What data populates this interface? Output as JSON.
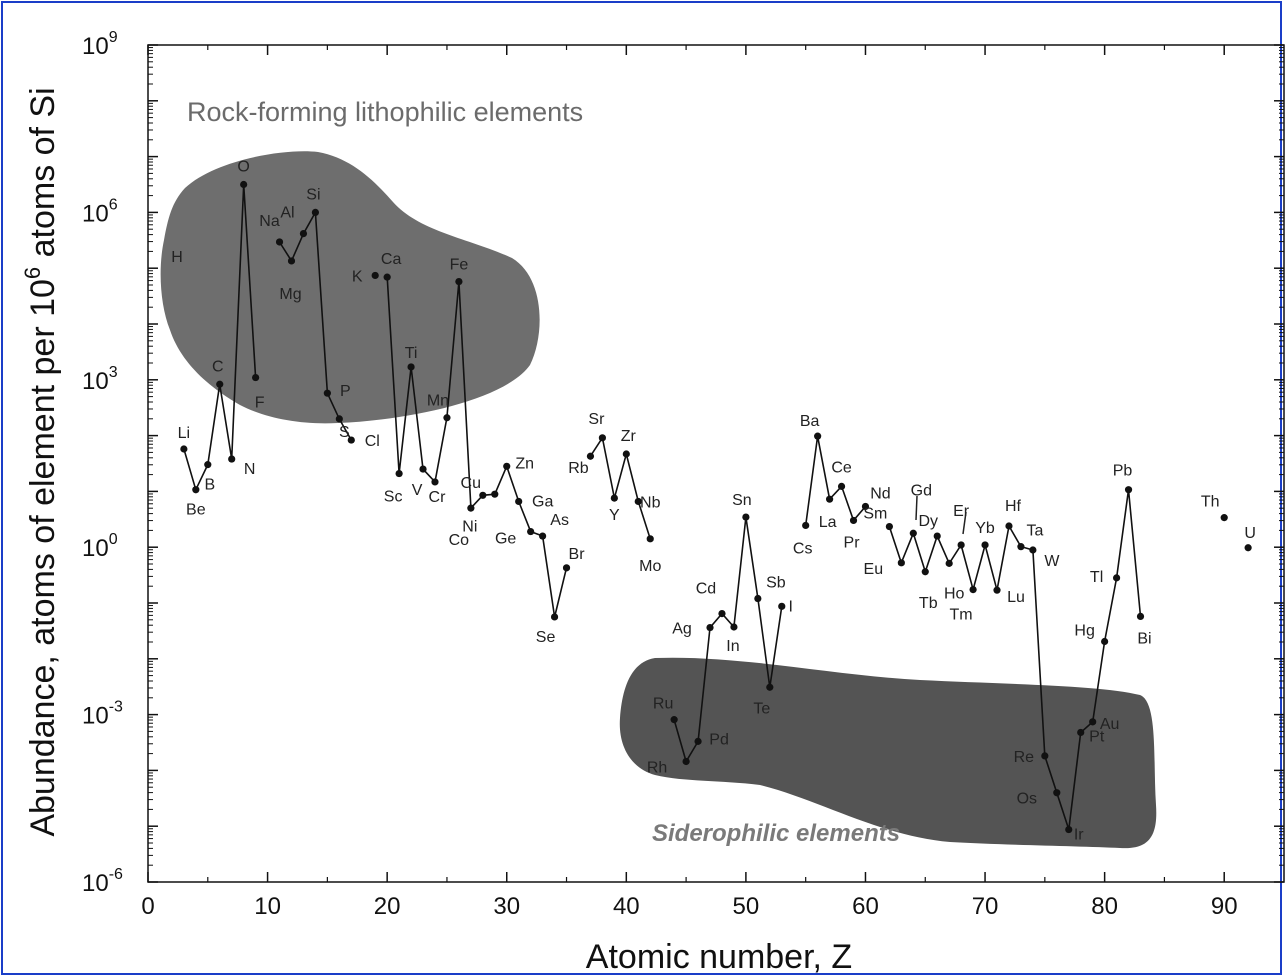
{
  "chart_data": {
    "type": "scatter",
    "xlabel": "Atomic number, Z",
    "ylabel": "Abundance, atoms of element per 10^6 atoms of Si",
    "ylabel_prefix": "Abundance, atoms of element per 10",
    "ylabel_sup": "6",
    "ylabel_suffix": " atoms of Si",
    "xlim": [
      0,
      95
    ],
    "ylim_log10": [
      -6,
      9
    ],
    "y_scale": "log",
    "x_ticks": [
      "0",
      "10",
      "20",
      "30",
      "40",
      "50",
      "60",
      "70",
      "80",
      "90"
    ],
    "y_ticks": [
      {
        "base": "10",
        "exp": "9"
      },
      {
        "base": "10",
        "exp": "6"
      },
      {
        "base": "10",
        "exp": "3"
      },
      {
        "base": "10",
        "exp": "0"
      },
      {
        "base": "10",
        "exp": "-3"
      },
      {
        "base": "10",
        "exp": "-6"
      }
    ],
    "regions": [
      {
        "name": "Rock-forming lithophilic elements",
        "color": "#6e6e6e"
      },
      {
        "name": "Siderophilic elements",
        "color": "#545454"
      }
    ],
    "line_color": "#111111",
    "point_color": "#111111",
    "points": [
      {
        "symbol": "H",
        "z": 1,
        "log10": 5.64
      },
      {
        "symbol": "Li",
        "z": 3,
        "log10": 1.76
      },
      {
        "symbol": "Be",
        "z": 4,
        "log10": 1.03
      },
      {
        "symbol": "B",
        "z": 5,
        "log10": 1.48
      },
      {
        "symbol": "C",
        "z": 6,
        "log10": 2.92
      },
      {
        "symbol": "N",
        "z": 7,
        "log10": 1.58
      },
      {
        "symbol": "O",
        "z": 8,
        "log10": 6.5
      },
      {
        "symbol": "F",
        "z": 9,
        "log10": 3.04
      },
      {
        "symbol": "Na",
        "z": 11,
        "log10": 5.47
      },
      {
        "symbol": "Mg",
        "z": 12,
        "log10": 5.13
      },
      {
        "symbol": "Al",
        "z": 13,
        "log10": 5.62
      },
      {
        "symbol": "Si",
        "z": 14,
        "log10": 6.0
      },
      {
        "symbol": "P",
        "z": 15,
        "log10": 2.76
      },
      {
        "symbol": "S",
        "z": 16,
        "log10": 2.3
      },
      {
        "symbol": "Cl",
        "z": 17,
        "log10": 1.92
      },
      {
        "symbol": "K",
        "z": 19,
        "log10": 4.87
      },
      {
        "symbol": "Ca",
        "z": 20,
        "log10": 4.84
      },
      {
        "symbol": "Sc",
        "z": 21,
        "log10": 1.32
      },
      {
        "symbol": "Ti",
        "z": 22,
        "log10": 3.23
      },
      {
        "symbol": "V",
        "z": 23,
        "log10": 1.4
      },
      {
        "symbol": "Cr",
        "z": 24,
        "log10": 1.17
      },
      {
        "symbol": "Mn",
        "z": 25,
        "log10": 2.32
      },
      {
        "symbol": "Fe",
        "z": 26,
        "log10": 4.76
      },
      {
        "symbol": "Co",
        "z": 27,
        "log10": 0.7
      },
      {
        "symbol": "Ni",
        "z": 28,
        "log10": 0.93
      },
      {
        "symbol": "Cu",
        "z": 29,
        "log10": 0.95
      },
      {
        "symbol": "Zn",
        "z": 30,
        "log10": 1.45
      },
      {
        "symbol": "Ga",
        "z": 31,
        "log10": 0.82
      },
      {
        "symbol": "Ge",
        "z": 32,
        "log10": 0.28
      },
      {
        "symbol": "As",
        "z": 33,
        "log10": 0.2
      },
      {
        "symbol": "Se",
        "z": 34,
        "log10": -1.25
      },
      {
        "symbol": "Br",
        "z": 35,
        "log10": -0.37
      },
      {
        "symbol": "Rb",
        "z": 37,
        "log10": 1.63
      },
      {
        "symbol": "Sr",
        "z": 38,
        "log10": 1.96
      },
      {
        "symbol": "Y",
        "z": 39,
        "log10": 0.88
      },
      {
        "symbol": "Zr",
        "z": 40,
        "log10": 1.67
      },
      {
        "symbol": "Nb",
        "z": 41,
        "log10": 0.82
      },
      {
        "symbol": "Mo",
        "z": 42,
        "log10": 0.15
      },
      {
        "symbol": "Ru",
        "z": 44,
        "log10": -3.09
      },
      {
        "symbol": "Rh",
        "z": 45,
        "log10": -3.84
      },
      {
        "symbol": "Pd",
        "z": 46,
        "log10": -3.48
      },
      {
        "symbol": "Ag",
        "z": 47,
        "log10": -1.44
      },
      {
        "symbol": "Cd",
        "z": 48,
        "log10": -1.19
      },
      {
        "symbol": "In",
        "z": 49,
        "log10": -1.43
      },
      {
        "symbol": "Sn",
        "z": 50,
        "log10": 0.54
      },
      {
        "symbol": "Sb",
        "z": 51,
        "log10": -0.92
      },
      {
        "symbol": "Te",
        "z": 52,
        "log10": -2.51
      },
      {
        "symbol": "I",
        "z": 53,
        "log10": -1.06
      },
      {
        "symbol": "Cs",
        "z": 55,
        "log10": 0.39
      },
      {
        "symbol": "Ba",
        "z": 56,
        "log10": 1.99
      },
      {
        "symbol": "La",
        "z": 57,
        "log10": 0.86
      },
      {
        "symbol": "Ce",
        "z": 58,
        "log10": 1.09
      },
      {
        "symbol": "Pr",
        "z": 59,
        "log10": 0.48
      },
      {
        "symbol": "Nd",
        "z": 60,
        "log10": 0.73
      },
      {
        "symbol": "Sm",
        "z": 62,
        "log10": 0.37
      },
      {
        "symbol": "Eu",
        "z": 63,
        "log10": -0.28
      },
      {
        "symbol": "Gd",
        "z": 64,
        "log10": 0.25
      },
      {
        "symbol": "Tb",
        "z": 65,
        "log10": -0.44
      },
      {
        "symbol": "Dy",
        "z": 66,
        "log10": 0.2
      },
      {
        "symbol": "Ho",
        "z": 67,
        "log10": -0.29
      },
      {
        "symbol": "Er",
        "z": 68,
        "log10": 0.04
      },
      {
        "symbol": "Tm",
        "z": 69,
        "log10": -0.76
      },
      {
        "symbol": "Yb",
        "z": 70,
        "log10": 0.04
      },
      {
        "symbol": "Lu",
        "z": 71,
        "log10": -0.77
      },
      {
        "symbol": "Hf",
        "z": 72,
        "log10": 0.38
      },
      {
        "symbol": "Ta",
        "z": 73,
        "log10": 0.01
      },
      {
        "symbol": "W",
        "z": 74,
        "log10": -0.05
      },
      {
        "symbol": "Re",
        "z": 75,
        "log10": -3.74
      },
      {
        "symbol": "Os",
        "z": 76,
        "log10": -4.4
      },
      {
        "symbol": "Ir",
        "z": 77,
        "log10": -5.06
      },
      {
        "symbol": "Pt",
        "z": 78,
        "log10": -3.32
      },
      {
        "symbol": "Au",
        "z": 79,
        "log10": -3.13
      },
      {
        "symbol": "Hg",
        "z": 80,
        "log10": -1.69
      },
      {
        "symbol": "Tl",
        "z": 81,
        "log10": -0.55
      },
      {
        "symbol": "Pb",
        "z": 82,
        "log10": 1.03
      },
      {
        "symbol": "Bi",
        "z": 83,
        "log10": -1.24
      },
      {
        "symbol": "Th",
        "z": 90,
        "log10": 0.53
      },
      {
        "symbol": "U",
        "z": 92,
        "log10": -0.01
      }
    ],
    "segments": [
      [
        3,
        4,
        5,
        6,
        7,
        8,
        9
      ],
      [
        11,
        12,
        13,
        14,
        15,
        16,
        17
      ],
      [
        20,
        21,
        22,
        23,
        24,
        25,
        26,
        27,
        28,
        29,
        30,
        31,
        32,
        33,
        34,
        35
      ],
      [
        37,
        38,
        39,
        40,
        41,
        42
      ],
      [
        44,
        45,
        46,
        47,
        48,
        49,
        50,
        51,
        52,
        53
      ],
      [
        55,
        56,
        57,
        58,
        59,
        60
      ],
      [
        62,
        63,
        64,
        65,
        66,
        67,
        68,
        69,
        70,
        71,
        72,
        73,
        74,
        75,
        76,
        77,
        78,
        79,
        80,
        81,
        82,
        83
      ]
    ]
  }
}
